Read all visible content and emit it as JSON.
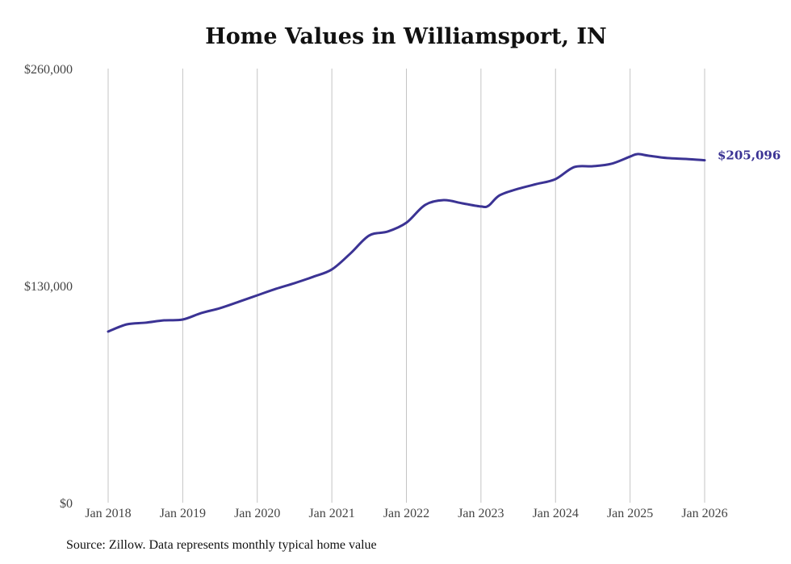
{
  "chart_data": {
    "type": "line",
    "title": "Home Values in Williamsport, IN",
    "xlabel": "",
    "ylabel": "",
    "ylim": [
      0,
      260000
    ],
    "xlim": [
      2018.0,
      2026.0
    ],
    "y_ticks": [
      "$0",
      "$130,000",
      "$260,000"
    ],
    "y_tick_values": [
      0,
      130000,
      260000
    ],
    "x_ticks": [
      "Jan 2018",
      "Jan 2019",
      "Jan 2020",
      "Jan 2021",
      "Jan 2022",
      "Jan 2023",
      "Jan 2024",
      "Jan 2025",
      "Jan 2026"
    ],
    "x_tick_values": [
      2018,
      2019,
      2020,
      2021,
      2022,
      2023,
      2024,
      2025,
      2026
    ],
    "grid": "vertical",
    "series": [
      {
        "name": "Typical home value",
        "color": "#3b3394",
        "x": [
          2018.0,
          2018.25,
          2018.5,
          2018.75,
          2019.0,
          2019.25,
          2019.5,
          2019.75,
          2020.0,
          2020.25,
          2020.5,
          2020.75,
          2021.0,
          2021.25,
          2021.5,
          2021.75,
          2022.0,
          2022.25,
          2022.5,
          2022.75,
          2023.0,
          2023.1,
          2023.25,
          2023.5,
          2023.75,
          2024.0,
          2024.25,
          2024.5,
          2024.75,
          2025.0,
          2025.1,
          2025.25,
          2025.5,
          2025.75,
          2026.0
        ],
        "values": [
          102500,
          106800,
          107800,
          109200,
          109700,
          113600,
          116500,
          120300,
          124200,
          128100,
          131500,
          135300,
          139700,
          149300,
          160000,
          162400,
          167700,
          178300,
          181200,
          179300,
          177400,
          177800,
          184100,
          188000,
          190900,
          193800,
          201000,
          201500,
          203000,
          207300,
          208800,
          207800,
          206400,
          205900,
          205096
        ]
      }
    ],
    "end_label": "$205,096",
    "source": "Source: Zillow. Data represents monthly typical home value"
  }
}
